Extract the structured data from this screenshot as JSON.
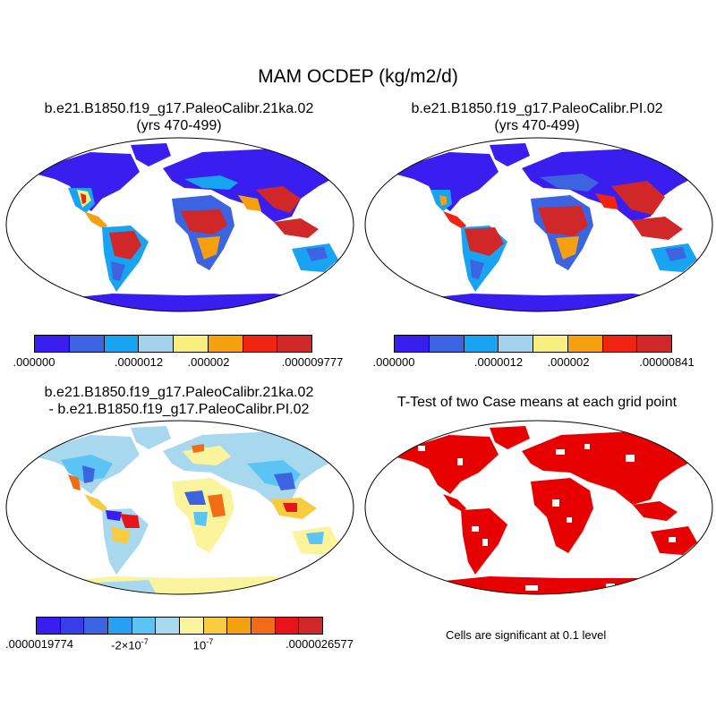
{
  "figure": {
    "title": "MAM OCDEP (kg/m2/d)",
    "panels": [
      {
        "title_line1": "b.e21.B1850.f19_g17.PaleoCalibr.21ka.02",
        "title_line2": "(yrs 470-499)",
        "colorbar": {
          "colors": [
            "#3a1ef0",
            "#3c64e0",
            "#18a4f2",
            "#a2d2ec",
            "#f8ee80",
            "#f6a010",
            "#f02410",
            "#d02828"
          ],
          "tick_labels": [
            ".000000",
            ".0000012",
            ".000002",
            ".000009777"
          ]
        }
      },
      {
        "title_line1": "b.e21.B1850.f19_g17.PaleoCalibr.PI.02",
        "title_line2": "(yrs 470-499)",
        "colorbar": {
          "colors": [
            "#3a1ef0",
            "#3c64e0",
            "#18a4f2",
            "#a2d2ec",
            "#f8ee80",
            "#f6a010",
            "#f02410",
            "#d02828"
          ],
          "tick_labels": [
            ".000000",
            ".0000012",
            ".000002",
            ".00000841"
          ]
        }
      },
      {
        "title_line1": "b.e21.B1850.f19_g17.PaleoCalibr.21ka.02",
        "title_line2": "- b.e21.B1850.f19_g17.PaleoCalibr.PI.02",
        "colorbar": {
          "colors": [
            "#3a1ef0",
            "#3a3ee6",
            "#3c64e0",
            "#28a0f2",
            "#5cc4f4",
            "#a8d8ee",
            "#fcf49c",
            "#f8cc40",
            "#f6a010",
            "#f26c18",
            "#e8141c",
            "#d02828"
          ],
          "tick_labels": [
            ".0000019774",
            "-2×10",
            "-7",
            "10",
            "-7",
            ".0000026577"
          ]
        }
      },
      {
        "title_line1": "T-Test of two Case means at each grid point",
        "note": "Cells are significant at 0.1 level",
        "significant_color": "#e60000"
      }
    ]
  }
}
